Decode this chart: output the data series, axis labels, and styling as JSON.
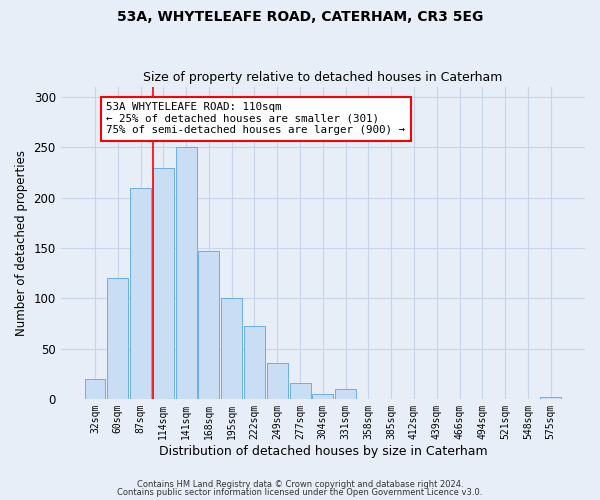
{
  "title": "53A, WHYTELEAFE ROAD, CATERHAM, CR3 5EG",
  "subtitle": "Size of property relative to detached houses in Caterham",
  "xlabel": "Distribution of detached houses by size in Caterham",
  "ylabel": "Number of detached properties",
  "bar_labels": [
    "32sqm",
    "60sqm",
    "87sqm",
    "114sqm",
    "141sqm",
    "168sqm",
    "195sqm",
    "222sqm",
    "249sqm",
    "277sqm",
    "304sqm",
    "331sqm",
    "358sqm",
    "385sqm",
    "412sqm",
    "439sqm",
    "466sqm",
    "494sqm",
    "521sqm",
    "548sqm",
    "575sqm"
  ],
  "bar_values": [
    20,
    120,
    210,
    230,
    250,
    147,
    100,
    72,
    36,
    16,
    5,
    10,
    0,
    0,
    0,
    0,
    0,
    0,
    0,
    0,
    2
  ],
  "bar_color": "#c9ddf5",
  "bar_edge_color": "#6aaee8",
  "background_color": "#e8eef8",
  "grid_color": "#c8d4e8",
  "vline_color": "red",
  "vline_x_index": 3,
  "annotation_text": "53A WHYTELEAFE ROAD: 110sqm\n← 25% of detached houses are smaller (301)\n75% of semi-detached houses are larger (900) →",
  "annotation_box_color": "white",
  "annotation_box_edge_color": "red",
  "ylim": [
    0,
    310
  ],
  "yticks": [
    0,
    50,
    100,
    150,
    200,
    250,
    300
  ],
  "footnote1": "Contains HM Land Registry data © Crown copyright and database right 2024.",
  "footnote2": "Contains public sector information licensed under the Open Government Licence v3.0."
}
